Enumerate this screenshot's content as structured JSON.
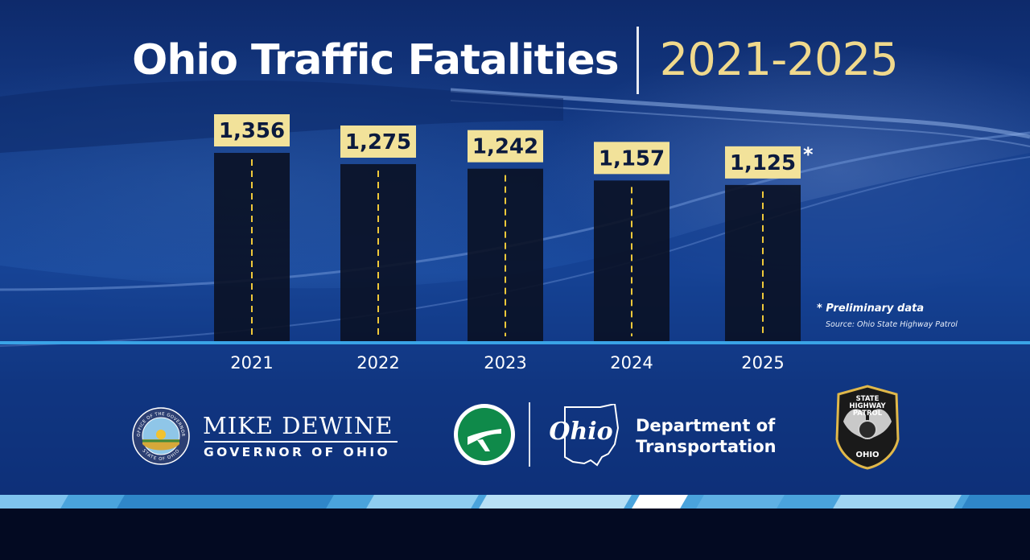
{
  "header": {
    "title": "Ohio Traffic Fatalities",
    "years": "2021-2025"
  },
  "chart_data": {
    "type": "bar",
    "title": "Ohio Traffic Fatalities 2021-2025",
    "categories": [
      "2021",
      "2022",
      "2023",
      "2024",
      "2025"
    ],
    "values": [
      1356,
      1275,
      1242,
      1157,
      1125
    ],
    "value_labels": [
      "1,356",
      "1,275",
      "1,242",
      "1,157",
      "1,125"
    ],
    "annotations": [
      "",
      "",
      "",
      "",
      "*"
    ],
    "xlabel": "",
    "ylabel": "",
    "grid": false,
    "legend": "none"
  },
  "notes": {
    "preliminary": "* Preliminary data",
    "source": "Source: Ohio State Highway Patrol"
  },
  "logos": {
    "seal_top": "OFFICE OF THE GOVERNOR",
    "seal_bottom": "STATE OF OHIO",
    "governor_name": "MIKE DEWINE",
    "governor_title": "GOVERNOR OF OHIO",
    "ohio_script": "Ohio",
    "dept_line1": "Department of",
    "dept_line2": "Transportation",
    "badge_top1": "STATE",
    "badge_top2": "HIGHWAY",
    "badge_top3": "PATROL",
    "badge_bottom": "OHIO"
  },
  "colors": {
    "bar": "#0a1124",
    "label_box": "#f2e29a",
    "label_text": "#0b1a3e",
    "dash": "#f0c93a",
    "baseline": "#3aa3e6",
    "years_text": "#f0d98c",
    "odot_green": "#0f8a4a"
  }
}
